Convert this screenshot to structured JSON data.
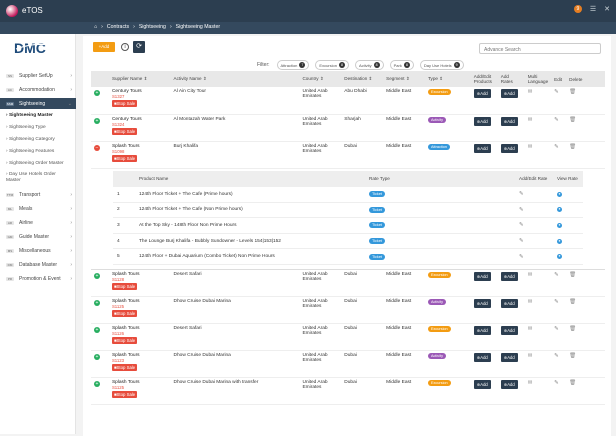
{
  "app": {
    "title": "eTOS",
    "notifications": "9"
  },
  "breadcrumb": [
    "Contracts",
    "Sightseeing",
    "Sightseeing Master"
  ],
  "sidebar": {
    "items": [
      {
        "code": "SS",
        "label": "Supplier SetUp"
      },
      {
        "code": "AC",
        "label": "Accommodation"
      },
      {
        "code": "SSM",
        "label": "Sightseeing"
      }
    ],
    "subitems": [
      "Sightseeing Master",
      "Sightseeing Type",
      "Sightseeing Category",
      "Sightseeing Features",
      "Sightseeing Order Master",
      "Day Use Hotels Order Master"
    ],
    "items2": [
      {
        "code": "TTM",
        "label": "Transport"
      },
      {
        "code": "ML",
        "label": "Meals"
      },
      {
        "code": "AR",
        "label": "Airline"
      },
      {
        "code": "GM",
        "label": "Guide Master"
      },
      {
        "code": "MS",
        "label": "Miscellaneous"
      },
      {
        "code": "DM",
        "label": "Database Master"
      },
      {
        "code": "PR",
        "label": "Promotion & Event"
      }
    ]
  },
  "toolbar": {
    "add_label": "+Add",
    "search_placeholder": "Advance Search"
  },
  "filters": {
    "label": "Filter:",
    "chips": [
      {
        "label": "Attraction",
        "count": "7"
      },
      {
        "label": "Excursion",
        "count": "8"
      },
      {
        "label": "Activity",
        "count": "8"
      },
      {
        "label": "Park",
        "count": "8"
      },
      {
        "label": "Day Use Hotels",
        "count": "9"
      }
    ]
  },
  "table": {
    "headers": [
      "Supplier Name ⇕",
      "Activity Name ⇕",
      "Country ⇕",
      "Destination ⇕",
      "Segment ⇕",
      "Type ⇕",
      "Add/Edit Products",
      "Add Rates",
      "Multi Language",
      "Edit",
      "Delete"
    ],
    "stop_label": "Stop Sale",
    "add_label": "Add",
    "rows": [
      {
        "supplier": "Century Tours",
        "id": "S1327",
        "activity": "Al Ain City Tour",
        "country": "United Arab Emirates",
        "destination": "Abu Dhabi",
        "segment": "Middle East",
        "type": "Excursion",
        "type_class": "t-exc"
      },
      {
        "supplier": "Century Tours",
        "id": "S1324",
        "activity": "Al Montazah Water Park",
        "country": "United Arab Emirates",
        "destination": "Sharjah",
        "segment": "Middle East",
        "type": "Activity",
        "type_class": "t-act"
      },
      {
        "supplier": "Splash Tours",
        "id": "S1098",
        "activity": "Burj Khalifa",
        "country": "United Arab Emirates",
        "destination": "Dubai",
        "segment": "Middle East",
        "type": "Attraction",
        "type_class": "t-att"
      },
      {
        "supplier": "Splash Tours",
        "id": "S1128",
        "activity": "Desert Safari",
        "country": "United Arab Emirates",
        "destination": "Dubai",
        "segment": "Middle East",
        "type": "Excursion",
        "type_class": "t-exc"
      },
      {
        "supplier": "Splash Tours",
        "id": "S1125",
        "activity": "Dhow Cruise Dubai Marina",
        "country": "United Arab Emirates",
        "destination": "Dubai",
        "segment": "Middle East",
        "type": "Activity",
        "type_class": "t-act"
      },
      {
        "supplier": "Splash Tours",
        "id": "S1126",
        "activity": "Desert Safari",
        "country": "United Arab Emirates",
        "destination": "Dubai",
        "segment": "Middle East",
        "type": "Excursion",
        "type_class": "t-exc"
      },
      {
        "supplier": "Splash Tours",
        "id": "S1123",
        "activity": "Dhow Cruise Dubai Marina",
        "country": "United Arab Emirates",
        "destination": "Dubai",
        "segment": "Middle East",
        "type": "Activity",
        "type_class": "t-act"
      },
      {
        "supplier": "Splash Tours",
        "id": "S1125",
        "activity": "Dhow Cruise Dubai Marina with transfer",
        "country": "United Arab Emirates",
        "destination": "Dubai",
        "segment": "Middle East",
        "type": "Excursion",
        "type_class": "t-exc"
      }
    ],
    "nested": {
      "headers": [
        "",
        "Product Name",
        "Rate Type",
        "Add/Edit Rate",
        "View Rate"
      ],
      "rows": [
        {
          "n": "1",
          "name": "124th Floor Ticket + The Cafe (Prime hours)",
          "rate": "Ticket"
        },
        {
          "n": "2",
          "name": "124th Floor Ticket + The Cafe (Non Prime hours)",
          "rate": "Ticket"
        },
        {
          "n": "3",
          "name": "At the Top Sky - 148th Floor Non Prime Hours",
          "rate": "Ticket"
        },
        {
          "n": "4",
          "name": "The Lounge Burj Khalifa - Bubbly Sundowner - Levels 154|153|152",
          "rate": "Ticket"
        },
        {
          "n": "5",
          "name": "124th Floor + Dubai Aquarium (Combo Ticket) Non Prime Hours",
          "rate": "Ticket"
        }
      ]
    }
  },
  "colors": {
    "navy": "#2c3e50",
    "orange": "#f39c12",
    "red": "#e74c3c",
    "green": "#27ae60",
    "blue": "#3498db",
    "purple": "#9b59b6"
  }
}
